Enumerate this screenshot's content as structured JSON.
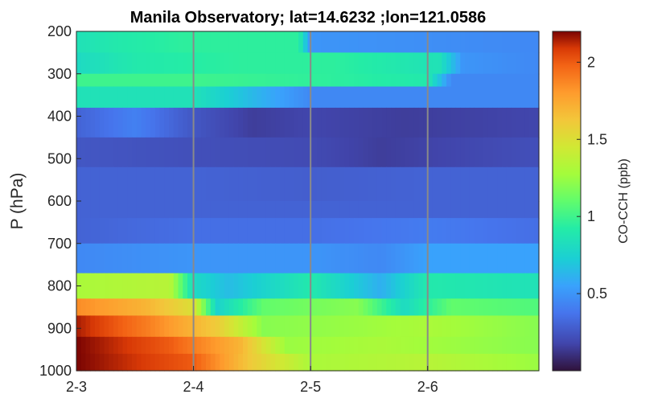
{
  "chart_data": {
    "type": "heatmap",
    "title": "Manila Observatory; lat=14.6232 ;lon=121.0586",
    "ylabel": "P (hPa)",
    "xlabel": "",
    "colorbar_label": "CO-CCH (ppb)",
    "colormap": "turbo",
    "x_ticks": [
      "2-3",
      "2-4",
      "2-5",
      "2-6"
    ],
    "x_tick_values": [
      0,
      1,
      2,
      3
    ],
    "xlim": [
      0,
      3.95
    ],
    "y_ticks": [
      200,
      300,
      400,
      500,
      600,
      700,
      800,
      900,
      1000
    ],
    "ylim": [
      200,
      1000
    ],
    "y_reversed": true,
    "clim": [
      0,
      2.2
    ],
    "colorbar_ticks": [
      0.5,
      1,
      1.5,
      2
    ],
    "day_separators": [
      1,
      2,
      3
    ],
    "pressure_levels": [
      {
        "top": 200,
        "bottom": 250,
        "profile": [
          [
            0,
            0.85
          ],
          [
            0.35,
            0.9
          ],
          [
            0.9,
            0.95
          ],
          [
            1.9,
            0.95
          ],
          [
            2.0,
            0.5
          ],
          [
            3.95,
            0.45
          ]
        ]
      },
      {
        "top": 250,
        "bottom": 300,
        "profile": [
          [
            0,
            0.8
          ],
          [
            0.5,
            0.9
          ],
          [
            1.4,
            0.95
          ],
          [
            2.2,
            0.95
          ],
          [
            3.1,
            0.85
          ],
          [
            3.3,
            0.5
          ],
          [
            3.95,
            0.45
          ]
        ]
      },
      {
        "top": 300,
        "bottom": 330,
        "profile": [
          [
            0,
            1.0
          ],
          [
            1.0,
            1.0
          ],
          [
            2.2,
            0.95
          ],
          [
            3.0,
            0.9
          ],
          [
            3.2,
            0.45
          ],
          [
            3.95,
            0.45
          ]
        ]
      },
      {
        "top": 330,
        "bottom": 380,
        "profile": [
          [
            0,
            0.85
          ],
          [
            1.0,
            0.85
          ],
          [
            1.6,
            0.6
          ],
          [
            2.0,
            0.45
          ],
          [
            2.8,
            0.45
          ],
          [
            3.95,
            0.45
          ]
        ]
      },
      {
        "top": 380,
        "bottom": 450,
        "profile": [
          [
            0,
            0.3
          ],
          [
            0.5,
            0.42
          ],
          [
            1.0,
            0.25
          ],
          [
            1.5,
            0.15
          ],
          [
            2.0,
            0.18
          ],
          [
            2.8,
            0.15
          ],
          [
            3.95,
            0.18
          ]
        ]
      },
      {
        "top": 450,
        "bottom": 520,
        "profile": [
          [
            0,
            0.25
          ],
          [
            1.0,
            0.22
          ],
          [
            2.0,
            0.2
          ],
          [
            2.6,
            0.15
          ],
          [
            3.95,
            0.22
          ]
        ]
      },
      {
        "top": 520,
        "bottom": 600,
        "profile": [
          [
            0,
            0.3
          ],
          [
            1.0,
            0.3
          ],
          [
            2.0,
            0.28
          ],
          [
            3.0,
            0.3
          ],
          [
            3.95,
            0.3
          ]
        ]
      },
      {
        "top": 600,
        "bottom": 640,
        "profile": [
          [
            0,
            0.3
          ],
          [
            1.5,
            0.3
          ],
          [
            3.0,
            0.3
          ],
          [
            3.95,
            0.3
          ]
        ]
      },
      {
        "top": 640,
        "bottom": 700,
        "profile": [
          [
            0,
            0.3
          ],
          [
            1.0,
            0.35
          ],
          [
            2.0,
            0.35
          ],
          [
            3.0,
            0.4
          ],
          [
            3.95,
            0.35
          ]
        ]
      },
      {
        "top": 700,
        "bottom": 770,
        "profile": [
          [
            0,
            0.45
          ],
          [
            1.0,
            0.5
          ],
          [
            2.0,
            0.5
          ],
          [
            2.6,
            0.45
          ],
          [
            3.0,
            0.55
          ],
          [
            3.95,
            0.55
          ]
        ]
      },
      {
        "top": 770,
        "bottom": 830,
        "profile": [
          [
            0,
            1.3
          ],
          [
            0.8,
            1.35
          ],
          [
            1.0,
            0.8
          ],
          [
            1.3,
            0.65
          ],
          [
            2.0,
            0.9
          ],
          [
            2.6,
            0.6
          ],
          [
            3.0,
            0.9
          ],
          [
            3.95,
            0.85
          ]
        ]
      },
      {
        "top": 830,
        "bottom": 870,
        "profile": [
          [
            0,
            1.85
          ],
          [
            0.6,
            1.7
          ],
          [
            1.0,
            1.5
          ],
          [
            1.2,
            0.75
          ],
          [
            1.6,
            1.1
          ],
          [
            2.4,
            1.2
          ],
          [
            2.8,
            0.8
          ],
          [
            3.2,
            1.1
          ],
          [
            3.95,
            1.05
          ]
        ]
      },
      {
        "top": 870,
        "bottom": 920,
        "profile": [
          [
            0,
            2.15
          ],
          [
            0.6,
            1.9
          ],
          [
            1.2,
            1.6
          ],
          [
            1.6,
            1.2
          ],
          [
            2.4,
            1.25
          ],
          [
            3.0,
            1.3
          ],
          [
            3.95,
            1.2
          ]
        ]
      },
      {
        "top": 920,
        "bottom": 960,
        "profile": [
          [
            0,
            2.2
          ],
          [
            0.8,
            2.0
          ],
          [
            1.4,
            1.7
          ],
          [
            1.8,
            1.25
          ],
          [
            2.6,
            1.3
          ],
          [
            3.95,
            1.2
          ]
        ]
      },
      {
        "top": 960,
        "bottom": 1000,
        "profile": [
          [
            0,
            2.2
          ],
          [
            1.0,
            2.0
          ],
          [
            1.5,
            1.6
          ],
          [
            2.0,
            1.3
          ],
          [
            3.0,
            1.35
          ],
          [
            3.95,
            1.25
          ]
        ]
      }
    ]
  }
}
